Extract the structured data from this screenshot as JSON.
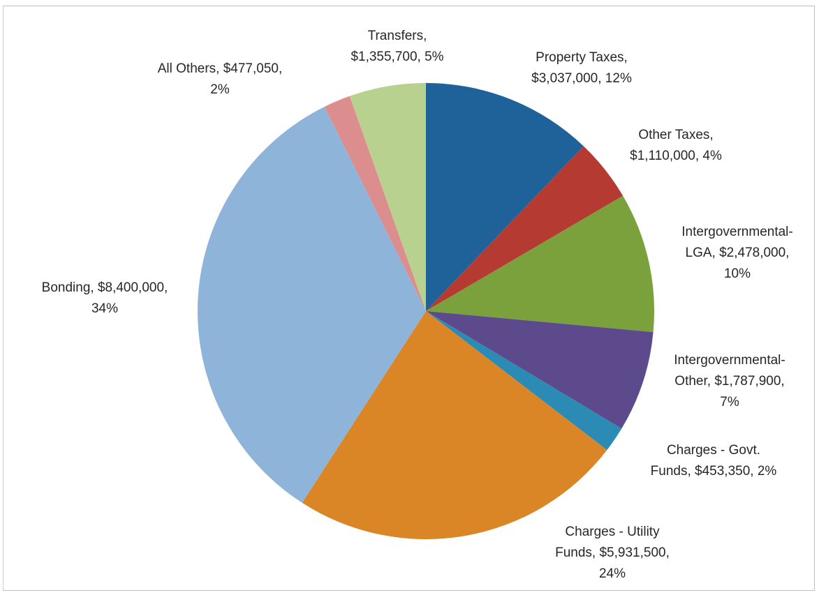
{
  "chart_data": {
    "type": "pie",
    "title": "",
    "slices": [
      {
        "name": "Property Taxes",
        "value": 3037000,
        "percent": 12,
        "color": "#1f6199",
        "label_lines": [
          "Property Taxes,",
          "$3,037,000, 12%"
        ]
      },
      {
        "name": "Other Taxes",
        "value": 1110000,
        "percent": 4,
        "color": "#b53a32",
        "label_lines": [
          "Other Taxes,",
          "$1,110,000, 4%"
        ]
      },
      {
        "name": "Intergovernmental-LGA",
        "value": 2478000,
        "percent": 10,
        "color": "#7aa13c",
        "label_lines": [
          "Intergovernmental-",
          "LGA, $2,478,000,",
          "10%"
        ]
      },
      {
        "name": "Intergovernmental-Other",
        "value": 1787900,
        "percent": 7,
        "color": "#5c4a8c",
        "label_lines": [
          "Intergovernmental-",
          "Other, $1,787,900,",
          "7%"
        ]
      },
      {
        "name": "Charges - Govt. Funds",
        "value": 453350,
        "percent": 2,
        "color": "#2b8bb5",
        "label_lines": [
          "Charges - Govt.",
          "Funds, $453,350, 2%"
        ]
      },
      {
        "name": "Charges - Utility Funds",
        "value": 5931500,
        "percent": 24,
        "color": "#db8626",
        "label_lines": [
          "Charges - Utility",
          "Funds, $5,931,500,",
          "24%"
        ]
      },
      {
        "name": "Bonding",
        "value": 8400000,
        "percent": 34,
        "color": "#8fb4da",
        "label_lines": [
          "Bonding, $8,400,000,",
          "34%"
        ]
      },
      {
        "name": "All Others",
        "value": 477050,
        "percent": 2,
        "color": "#dc8d8d",
        "label_lines": [
          "All Others, $477,050,",
          "2%"
        ]
      },
      {
        "name": "Transfers",
        "value": 1355700,
        "percent": 5,
        "color": "#b8d18e",
        "label_lines": [
          "Transfers,",
          "$1,355,700, 5%"
        ]
      }
    ]
  }
}
